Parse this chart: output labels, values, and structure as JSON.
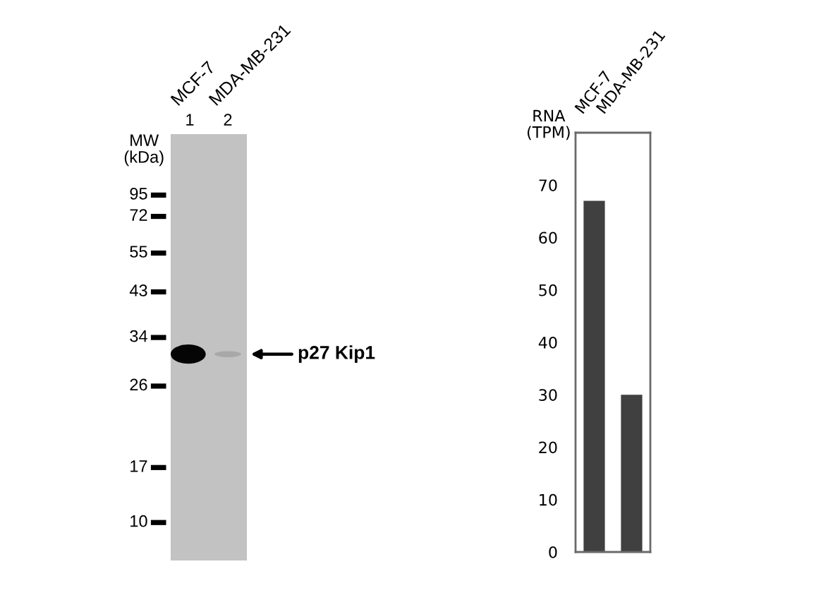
{
  "chart_data": [
    {
      "type": "other",
      "categories": [
        "MCF-7",
        "MDA-MB-231"
      ],
      "ylabel": "MW\n(kDa)",
      "annotations": [
        {
          "text": "1",
          "x": "MCF-7"
        },
        {
          "text": "2",
          "x": "MDA-MB-231"
        },
        "95",
        "72",
        "55",
        "43",
        "34",
        "26",
        "17",
        "10",
        "p27 Kip1"
      ]
    },
    {
      "type": "bar",
      "categories": [
        "MCF-7",
        "MDA-MB-231"
      ],
      "values": [
        67,
        30
      ],
      "color": "#404040",
      "ylabel": "RNA\n(TPM)",
      "ylim": [
        0,
        80
      ],
      "yticks": [
        0,
        10,
        20,
        30,
        40,
        50,
        60,
        70
      ],
      "grid": false
    }
  ]
}
